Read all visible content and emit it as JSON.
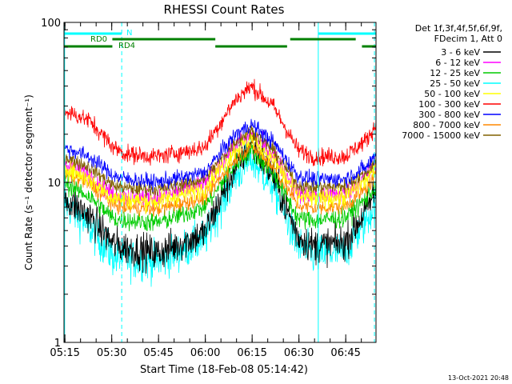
{
  "chart_data": {
    "type": "line",
    "title": "RHESSI Count Rates",
    "xlabel": "Start Time (18-Feb-08 05:14:42)",
    "ylabel": "Count Rate (s⁻¹ detector segment⁻¹)",
    "yscale": "log",
    "ylim": [
      1,
      100
    ],
    "xlim_minutes": [
      0,
      100
    ],
    "x_unit": "minutes after 05:14:42",
    "x_ticks": [
      {
        "value": 0.3,
        "label": "05:15"
      },
      {
        "value": 15.3,
        "label": "05:30"
      },
      {
        "value": 30.3,
        "label": "05:45"
      },
      {
        "value": 45.3,
        "label": "06:00"
      },
      {
        "value": 60.3,
        "label": "06:15"
      },
      {
        "value": 75.3,
        "label": "06:30"
      },
      {
        "value": 90.3,
        "label": "06:45"
      }
    ],
    "y_ticks": [
      {
        "value": 1,
        "label": "1"
      },
      {
        "value": 10,
        "label": "10"
      },
      {
        "value": 100,
        "label": "100"
      }
    ],
    "legend": {
      "header": [
        "Det 1f,3f,4f,5f,6f,9f,",
        "FDecim 1, Att 0"
      ],
      "placement": "right"
    },
    "series": [
      {
        "name": "3 - 6 keV",
        "color": "#000000",
        "noise": 0.18,
        "x": [
          0,
          8,
          16,
          20,
          30,
          45,
          55,
          60,
          67,
          75,
          80,
          90,
          97,
          100
        ],
        "y": [
          8.0,
          6.2,
          4.1,
          3.9,
          3.6,
          4.8,
          12.5,
          17.5,
          11.0,
          4.6,
          4.0,
          4.2,
          6.8,
          9.0
        ]
      },
      {
        "name": "6 - 12 keV",
        "color": "#ff00ff",
        "noise": 0.1,
        "x": [
          0,
          8,
          16,
          20,
          30,
          45,
          55,
          60,
          67,
          75,
          80,
          90,
          97,
          100
        ],
        "y": [
          13.2,
          11.2,
          8.3,
          8.2,
          8.0,
          9.8,
          17.0,
          20.0,
          15.0,
          8.6,
          8.3,
          8.5,
          11.0,
          13.0
        ]
      },
      {
        "name": "12 - 25 keV",
        "color": "#00cc00",
        "noise": 0.1,
        "x": [
          0,
          8,
          16,
          20,
          30,
          45,
          55,
          60,
          67,
          75,
          80,
          90,
          97,
          100
        ],
        "y": [
          10.0,
          8.2,
          5.9,
          5.8,
          5.6,
          7.0,
          13.0,
          16.0,
          11.5,
          6.0,
          5.8,
          6.0,
          8.0,
          9.5
        ]
      },
      {
        "name": "25 - 50 keV",
        "color": "#00ffff",
        "noise": 0.2,
        "x": [
          0,
          8,
          16,
          20,
          30,
          45,
          55,
          60,
          67,
          75,
          80,
          90,
          97,
          100
        ],
        "y": [
          7.6,
          5.2,
          3.4,
          3.3,
          3.2,
          4.4,
          11.0,
          14.0,
          9.5,
          4.0,
          3.5,
          3.7,
          5.8,
          7.5
        ]
      },
      {
        "name": "50 - 100 keV",
        "color": "#ffff00",
        "noise": 0.1,
        "x": [
          0,
          8,
          16,
          20,
          30,
          45,
          55,
          60,
          67,
          75,
          80,
          90,
          97,
          100
        ],
        "y": [
          12.5,
          10.5,
          8.0,
          7.8,
          7.6,
          9.2,
          16.0,
          19.0,
          14.0,
          8.2,
          7.9,
          8.1,
          10.5,
          12.5
        ]
      },
      {
        "name": "100 - 300 keV",
        "color": "#ff0000",
        "noise": 0.09,
        "x": [
          0,
          8,
          16,
          20,
          30,
          45,
          55,
          60,
          67,
          75,
          80,
          90,
          97,
          100
        ],
        "y": [
          28.0,
          24.5,
          16.5,
          15.0,
          14.5,
          16.5,
          33.0,
          40.0,
          30.0,
          16.0,
          14.5,
          14.5,
          18.5,
          23.0
        ]
      },
      {
        "name": "300 - 800 keV",
        "color": "#0000ff",
        "noise": 0.08,
        "x": [
          0,
          8,
          16,
          20,
          30,
          45,
          55,
          60,
          67,
          75,
          80,
          90,
          97,
          100
        ],
        "y": [
          16.5,
          14.5,
          11.0,
          10.5,
          10.0,
          11.5,
          20.0,
          23.0,
          18.0,
          11.0,
          10.5,
          10.5,
          12.5,
          15.0
        ]
      },
      {
        "name": "800 - 7000 keV",
        "color": "#ff8800",
        "noise": 0.08,
        "x": [
          0,
          8,
          16,
          20,
          30,
          45,
          55,
          60,
          67,
          75,
          80,
          90,
          97,
          100
        ],
        "y": [
          11.5,
          9.8,
          7.2,
          7.0,
          6.8,
          8.0,
          14.0,
          17.0,
          12.5,
          7.2,
          6.9,
          7.1,
          9.2,
          11.0
        ]
      },
      {
        "name": "7000 - 15000 keV",
        "color": "#806000",
        "noise": 0.07,
        "x": [
          0,
          8,
          16,
          20,
          30,
          45,
          55,
          60,
          67,
          75,
          80,
          90,
          97,
          100
        ],
        "y": [
          14.5,
          12.5,
          9.5,
          9.2,
          9.0,
          10.5,
          18.0,
          21.0,
          16.0,
          9.6,
          9.3,
          9.5,
          11.5,
          14.0
        ]
      }
    ],
    "annotations": {
      "flags": [
        {
          "label": "N",
          "color": "#00ffff",
          "segments_minutes": [
            [
              0,
              18.5
            ],
            [
              81.5,
              100
            ]
          ],
          "level": 1
        },
        {
          "label": "RD0",
          "color": "#008000",
          "segments_minutes": [
            [
              15.5,
              48.5
            ],
            [
              72.5,
              93.5
            ]
          ],
          "level": 2
        },
        {
          "label": "RD4",
          "color": "#008000",
          "segments_minutes": [
            [
              0,
              15.5
            ],
            [
              48.5,
              71.5
            ],
            [
              95.5,
              100
            ]
          ],
          "level": 3
        }
      ],
      "vertical_lines": [
        {
          "minute": 0.2,
          "style": "solid",
          "color": "#00ffff"
        },
        {
          "minute": 18.5,
          "style": "dashed",
          "color": "#00ffff"
        },
        {
          "minute": 81.5,
          "style": "solid",
          "color": "#00ffff"
        },
        {
          "minute": 99.5,
          "style": "dashed",
          "color": "#00ffff"
        }
      ]
    },
    "footer_timestamp": "13-Oct-2021 20:48"
  }
}
